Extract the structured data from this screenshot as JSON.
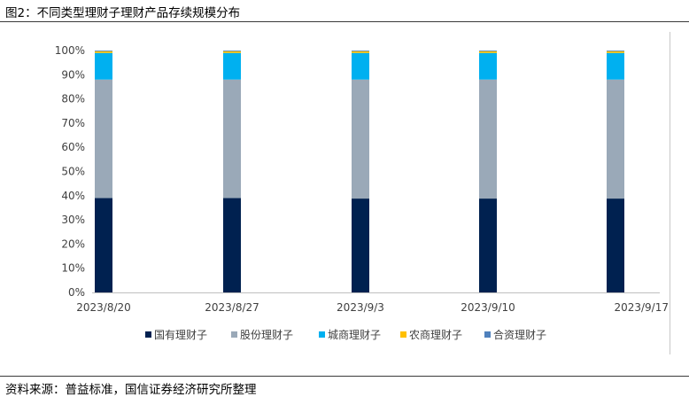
{
  "figure_title": "图2：不同类型理财子理财产品存续规模分布",
  "source": "资料来源：普益标准，国信证券经济研究所整理",
  "chart_data": {
    "type": "bar",
    "stacked": true,
    "categories": [
      "2023/8/20",
      "2023/8/27",
      "2023/9/3",
      "2023/9/10",
      "2023/9/17"
    ],
    "ylim": [
      0,
      100
    ],
    "yticks": [
      "0%",
      "10%",
      "20%",
      "30%",
      "40%",
      "50%",
      "60%",
      "70%",
      "80%",
      "90%",
      "100%"
    ],
    "grid": false,
    "legend_position": "bottom",
    "series": [
      {
        "name": "国有理财子",
        "color": "#002150",
        "values": [
          39,
          39,
          38.8,
          38.8,
          38.8
        ]
      },
      {
        "name": "股份理财子",
        "color": "#9aa9b8",
        "values": [
          49,
          49,
          49.2,
          49.2,
          49.2
        ]
      },
      {
        "name": "城商理财子",
        "color": "#00b0f0",
        "values": [
          11,
          11,
          11,
          11,
          11
        ]
      },
      {
        "name": "农商理财子",
        "color": "#ffc000",
        "values": [
          0.7,
          0.7,
          0.7,
          0.7,
          0.7
        ]
      },
      {
        "name": "合资理财子",
        "color": "#4f81bd",
        "values": [
          0.3,
          0.3,
          0.3,
          0.3,
          0.3
        ]
      }
    ]
  }
}
